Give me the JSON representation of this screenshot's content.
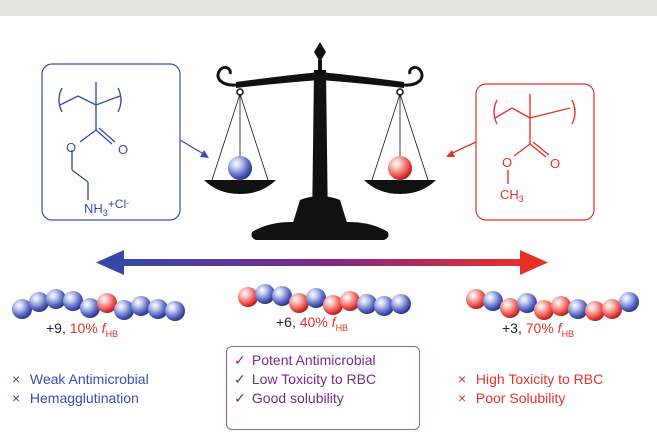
{
  "colors": {
    "blue": "#3a4fa8",
    "red": "#e8302a",
    "purple": "#7a2a86",
    "dark": "#1b2338",
    "scale": "#111111"
  },
  "left_monomer": {
    "amine_label": "NH",
    "amine_sub": "3",
    "amine_sup": "+Cl",
    "amine_sup2": "-",
    "o1": "O",
    "o2": "O"
  },
  "right_monomer": {
    "o1": "O",
    "o2": "O",
    "methyl": "CH",
    "methyl_sub": "3"
  },
  "compositions": [
    {
      "charge": "+9,",
      "percent": "10%",
      "f": "f",
      "sub": "HB"
    },
    {
      "charge": "+6,",
      "percent": "40%",
      "f": "f",
      "sub": "HB"
    },
    {
      "charge": "+3,",
      "percent": "70%",
      "f": "f",
      "sub": "HB"
    }
  ],
  "properties": {
    "left": [
      {
        "mark": "×",
        "text": "Weak Antimicrobial"
      },
      {
        "mark": "×",
        "text": "Hemagglutination"
      }
    ],
    "middle": [
      {
        "mark": "✓",
        "text": "Potent Antimicrobial"
      },
      {
        "mark": "✓",
        "text": "Low Toxicity to RBC"
      },
      {
        "mark": "✓",
        "text": "Good solubility"
      }
    ],
    "right": [
      {
        "mark": "×",
        "text": "High Toxicity to RBC"
      },
      {
        "mark": "×",
        "text": "Poor Solubility"
      }
    ]
  }
}
